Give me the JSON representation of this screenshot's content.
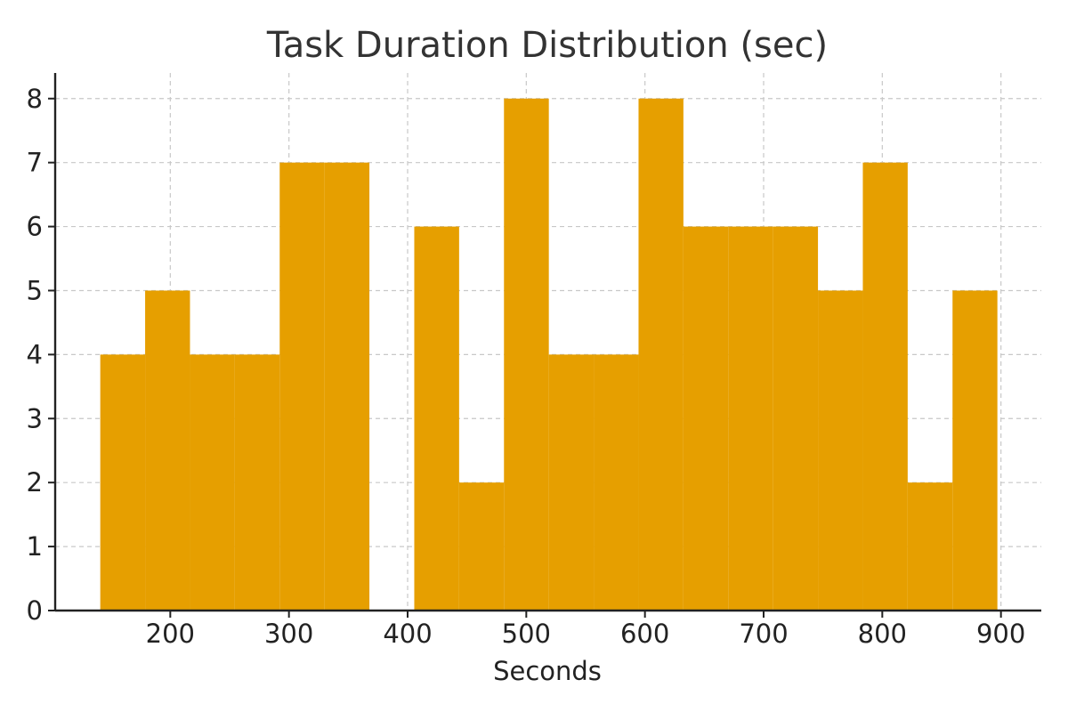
{
  "chart_data": {
    "type": "bar",
    "title": "Task Duration Distribution (sec)",
    "xlabel": "Seconds",
    "ylabel": "",
    "bar_color": "#E69F00",
    "grid": true,
    "xlim": [
      103,
      934
    ],
    "ylim": [
      0,
      8.4
    ],
    "xticks": [
      200,
      300,
      400,
      500,
      600,
      700,
      800,
      900
    ],
    "yticks": [
      0,
      1,
      2,
      3,
      4,
      5,
      6,
      7,
      8
    ],
    "bin_edges": [
      141,
      178.8,
      216.6,
      254.4,
      292.2,
      330,
      367.8,
      405.6,
      443.4,
      481.2,
      519,
      556.8,
      594.6,
      632.4,
      670.2,
      708,
      745.8,
      783.6,
      821.4,
      859.2,
      897
    ],
    "counts": [
      4,
      5,
      4,
      4,
      7,
      7,
      0,
      6,
      2,
      8,
      4,
      4,
      8,
      6,
      6,
      6,
      5,
      7,
      2,
      5
    ]
  }
}
